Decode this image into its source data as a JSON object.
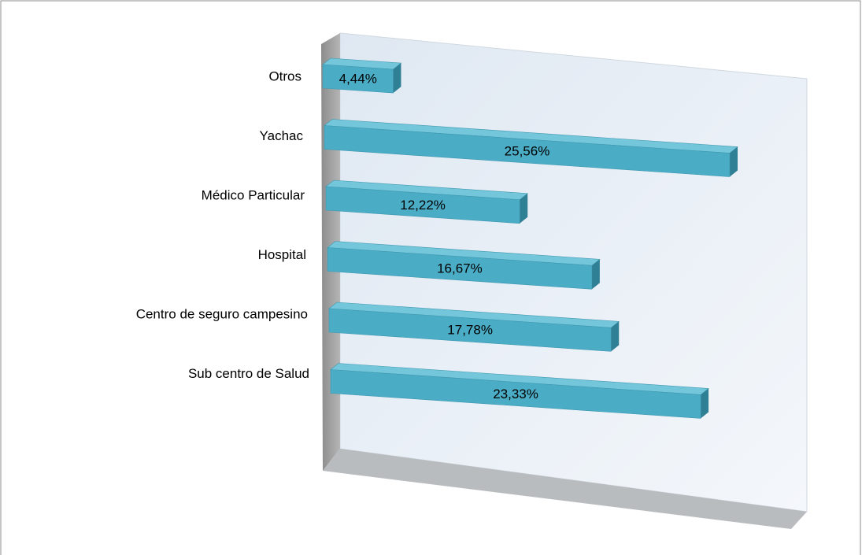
{
  "chart_data": {
    "type": "bar",
    "orientation": "horizontal",
    "categories": [
      "Otros",
      "Yachac",
      "Médico Particular",
      "Hospital",
      "Centro de seguro campesino",
      "Sub centro de Salud"
    ],
    "values": [
      4.44,
      25.56,
      12.22,
      16.67,
      17.78,
      23.33
    ],
    "value_labels": [
      "4,44%",
      "25,56%",
      "12,22%",
      "16,67%",
      "17,78%",
      "23,33%"
    ],
    "color": "#4bacc6"
  }
}
